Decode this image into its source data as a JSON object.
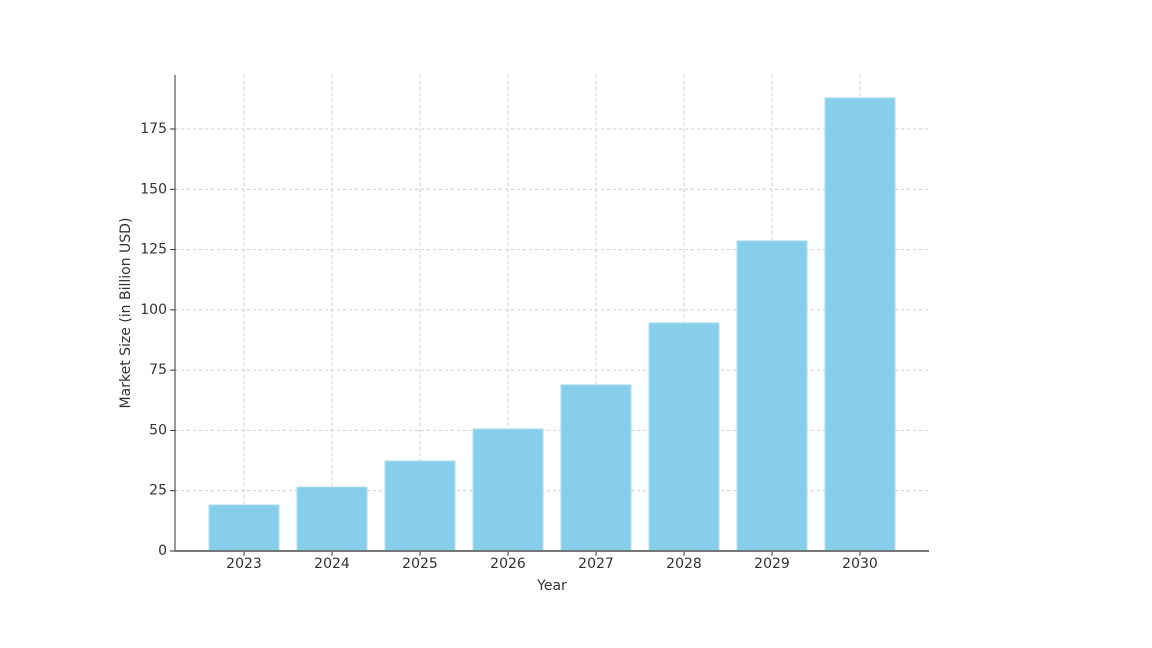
{
  "chart_data": {
    "type": "bar",
    "x_label": "Year",
    "y_label": "Market Size (in Billion USD)",
    "categories": [
      "2023",
      "2024",
      "2025",
      "2026",
      "2027",
      "2028",
      "2029",
      "2030"
    ],
    "values": [
      19.1,
      26.5,
      37.3,
      50.6,
      68.9,
      94.6,
      128.6,
      187.9
    ],
    "color": "#87ceeb",
    "ylim": [
      0,
      197.4
    ],
    "yticks": [
      0,
      25,
      50,
      75,
      100,
      125,
      150,
      175
    ],
    "grid": true
  }
}
